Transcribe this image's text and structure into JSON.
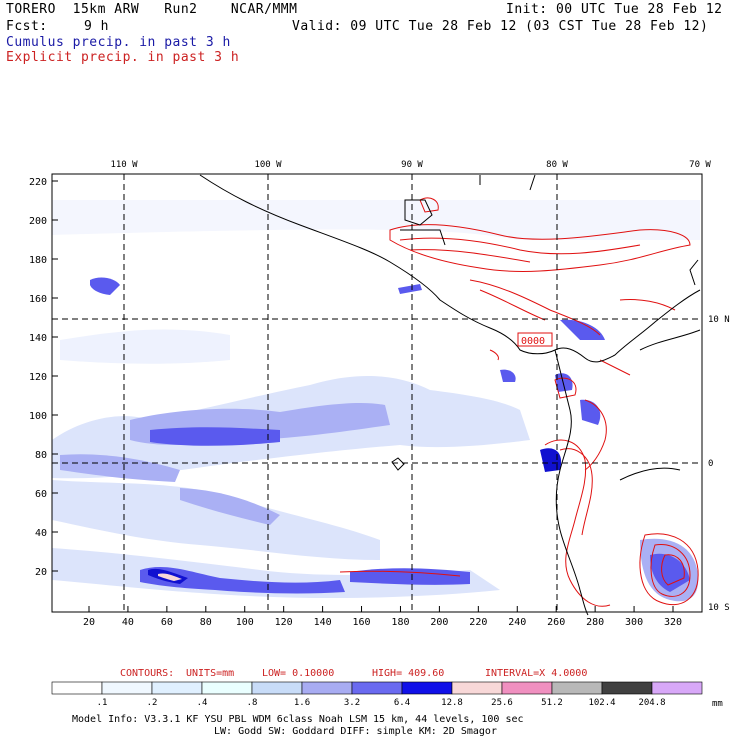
{
  "header": {
    "model": "TORERO  15km ARW   Run2    NCAR/MMM",
    "init": "Init: 00 UTC Tue 28 Feb 12",
    "fcst_label": "Fcst:",
    "fcst_value": "9 h",
    "valid": "Valid: 09 UTC Tue 28 Feb 12 (03 CST Tue 28 Feb 12)",
    "line_cumulus": "Cumulus precip. in past 3 h",
    "line_explicit": "Explicit precip. in past 3 h"
  },
  "map": {
    "lon_labels": [
      "110 W",
      "100 W",
      "90 W",
      "80 W",
      "70 W"
    ],
    "lat_labels": [
      "10 N",
      "0",
      "10 S"
    ],
    "y_ticks": [
      "220",
      "200",
      "180",
      "160",
      "140",
      "120",
      "100",
      "80",
      "60",
      "40",
      "20"
    ],
    "x_ticks": [
      "20",
      "40",
      "60",
      "80",
      "100",
      "120",
      "140",
      "160",
      "180",
      "200",
      "220",
      "240",
      "260",
      "280",
      "300",
      "320"
    ],
    "label_box": "0000",
    "colors": {
      "frame": "#000000",
      "cumulus_dark": "#1010d0",
      "cumulus_mid": "#5a5aee",
      "cumulus_light": "#aab0f4",
      "cumulus_pale": "#dce4fb",
      "explicit_contour": "#e01010",
      "coast": "#000000"
    }
  },
  "contours": {
    "prefix": "CONTOURS:",
    "units": "UNITS=mm",
    "low": "LOW= 0.10000",
    "high": "HIGH=  409.60",
    "interval": "INTERVAL=X  4.0000"
  },
  "colorbar": {
    "unit": "mm",
    "labels": [
      ".1",
      ".2",
      ".4",
      ".8",
      "1.6",
      "3.2",
      "6.4",
      "12.8",
      "25.6",
      "51.2",
      "102.4",
      "204.8"
    ],
    "colors": [
      "#ffffff",
      "#f0f8ff",
      "#e0f0ff",
      "#eaffff",
      "#c8dcf8",
      "#a8acf2",
      "#6a6af0",
      "#1010e8",
      "#f8d8d8",
      "#f090c0",
      "#b8b8b8",
      "#404040",
      "#d8a8f8"
    ]
  },
  "footer": {
    "line1": "Model Info: V3.3.1    KF     YSU PBL   WDM 6class  Noah LSM  15 km,   44 levels,  100 sec",
    "line2": "LW: Godd SW: Goddard DIFF: simple KM: 2D Smagor"
  }
}
